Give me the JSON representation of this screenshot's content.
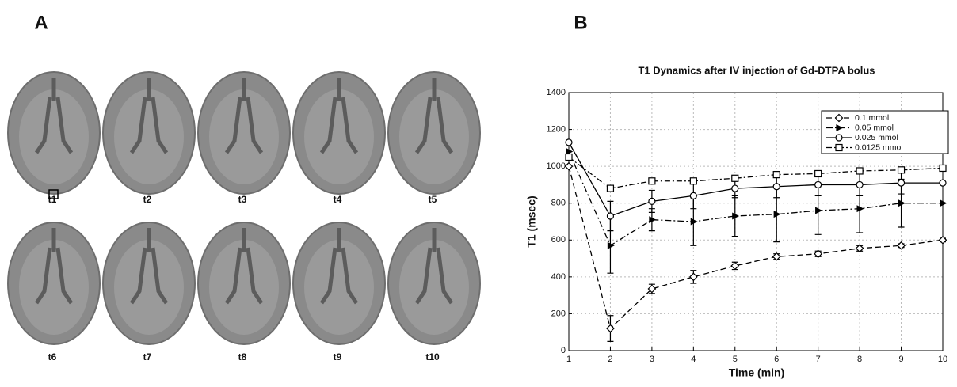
{
  "panel_a": {
    "label": "A",
    "captions": [
      "t1",
      "t2",
      "t3",
      "t4",
      "t5",
      "t6",
      "t7",
      "t8",
      "t9",
      "t10"
    ]
  },
  "panel_b": {
    "label": "B"
  },
  "chart_data": {
    "type": "line",
    "title": "T1 Dynamics after IV injection of Gd-DTPA bolus",
    "x_label": "Time (min)",
    "y_label": "T1 (msec)",
    "x": [
      1,
      2,
      3,
      4,
      5,
      6,
      7,
      8,
      9,
      10
    ],
    "xlim": [
      1,
      10
    ],
    "xticks": [
      1,
      2,
      3,
      4,
      5,
      6,
      7,
      8,
      9,
      10
    ],
    "ylim": [
      0,
      1400
    ],
    "yticks": [
      0,
      200,
      400,
      600,
      800,
      1000,
      1200,
      1400
    ],
    "grid": true,
    "legend": "upper right",
    "series": [
      {
        "name": "0.1 mmol",
        "color": "#000000",
        "dash": "7 4",
        "marker": "diamond",
        "values": [
          1000,
          120,
          335,
          400,
          460,
          510,
          525,
          555,
          570,
          600
        ],
        "errors": [
          0,
          70,
          25,
          35,
          20,
          15,
          15,
          15,
          10,
          10
        ]
      },
      {
        "name": "0.05 mmol",
        "color": "#000000",
        "dash": "8 3 2 3",
        "marker": "triangle",
        "values": [
          1080,
          570,
          710,
          700,
          730,
          740,
          760,
          770,
          800,
          800
        ],
        "errors": [
          0,
          150,
          60,
          130,
          110,
          150,
          130,
          130,
          130,
          0
        ]
      },
      {
        "name": "0.025 mmol",
        "color": "#000000",
        "dash": "none",
        "marker": "circle",
        "values": [
          1130,
          730,
          810,
          840,
          880,
          890,
          900,
          900,
          910,
          910
        ],
        "errors": [
          0,
          80,
          60,
          70,
          50,
          60,
          60,
          60,
          60,
          0
        ]
      },
      {
        "name": "0.0125 mmol",
        "color": "#000000",
        "dash": "7 3 2 3",
        "marker": "square",
        "values": [
          1050,
          880,
          920,
          920,
          935,
          955,
          960,
          975,
          980,
          990
        ],
        "errors": [
          0,
          15,
          15,
          15,
          10,
          10,
          10,
          10,
          10,
          10
        ]
      }
    ]
  }
}
